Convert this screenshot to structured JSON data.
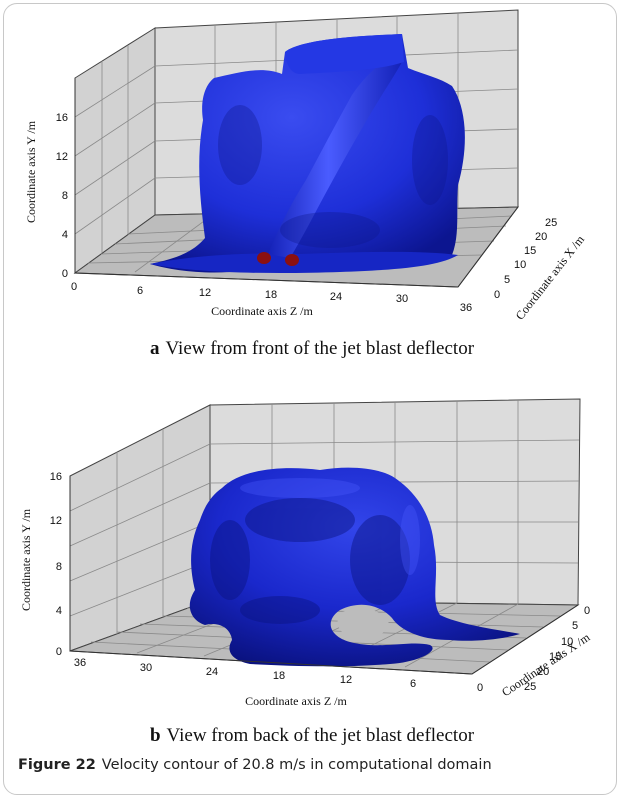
{
  "figure": {
    "label": "Figure 22",
    "caption": "Velocity contour of 20.8 m/s in computational domain"
  },
  "panel_a": {
    "letter": "a",
    "caption": "View from front of the jet blast deflector",
    "y_axis_label": "Coordinate axis  Y /m",
    "z_axis_label": "Coordinate axis  Z /m",
    "x_axis_label": "Coordinate axis  X /m",
    "y_ticks": [
      "0",
      "4",
      "8",
      "12",
      "16"
    ],
    "z_ticks": [
      "0",
      "6",
      "12",
      "18",
      "24",
      "30",
      "36"
    ],
    "x_ticks": [
      "0",
      "5",
      "10",
      "15",
      "20",
      "25"
    ]
  },
  "panel_b": {
    "letter": "b",
    "caption": "View from back of the jet blast deflector",
    "y_axis_label": "Coordinate axis  Y /m",
    "z_axis_label": "Coordinate axis  Z /m",
    "x_axis_label": "Coordinate axis  X /m",
    "y_ticks": [
      "0",
      "4",
      "8",
      "12",
      "16"
    ],
    "z_ticks": [
      "36",
      "30",
      "24",
      "18",
      "12",
      "6",
      "0"
    ],
    "x_ticks": [
      "0",
      "5",
      "10",
      "15",
      "20",
      "25"
    ]
  },
  "colors": {
    "isosurface": "#1e2fd8",
    "isosurface_shadow": "#0b148a",
    "nozzle": "#8b1010",
    "wall": "#d9d9d9",
    "floor": "#bdbdbd",
    "grid": "#8a8a8a"
  }
}
